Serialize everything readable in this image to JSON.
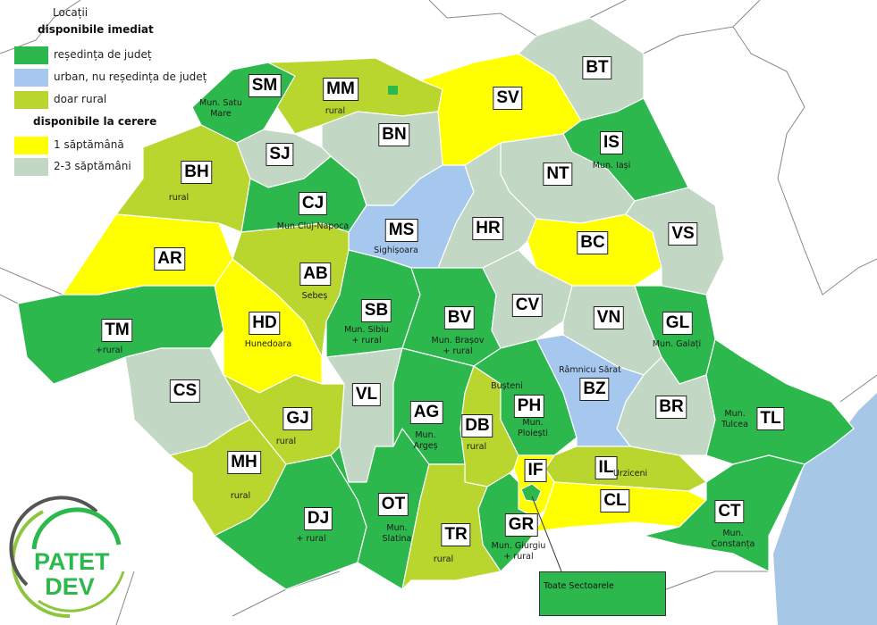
{
  "legend": {
    "title": "Locații",
    "group_immediate": "disponibile imediat",
    "group_on_request": "disponibile la cerere",
    "items": [
      {
        "key": "resedinta",
        "label": "reședința de județ",
        "color": "#2db84d"
      },
      {
        "key": "urban",
        "label": "urban, nu reședința de județ",
        "color": "#a6c8ee"
      },
      {
        "key": "rural",
        "label": "doar rural",
        "color": "#b8d62e"
      },
      {
        "key": "week1",
        "label": "1 săptămână",
        "color": "#ffff00"
      },
      {
        "key": "weeks23",
        "label": "2-3 săptămâni",
        "color": "#c3d8c4"
      }
    ]
  },
  "sea_color": "#a7c7e7",
  "counties": [
    {
      "code": "SM",
      "category": "resedinta",
      "note": "Mun. Satu\nMare"
    },
    {
      "code": "MM",
      "category": "rural",
      "note": "rural"
    },
    {
      "code": "SV",
      "category": "week1",
      "note": ""
    },
    {
      "code": "BT",
      "category": "weeks23",
      "note": ""
    },
    {
      "code": "IS",
      "category": "resedinta",
      "note": "Mun. Iași"
    },
    {
      "code": "BH",
      "category": "rural",
      "note": "rural"
    },
    {
      "code": "SJ",
      "category": "weeks23",
      "note": ""
    },
    {
      "code": "CJ",
      "category": "resedinta",
      "note": "Mun Cluj-Napoca"
    },
    {
      "code": "BN",
      "category": "weeks23",
      "note": ""
    },
    {
      "code": "NT",
      "category": "weeks23",
      "note": ""
    },
    {
      "code": "MS",
      "category": "urban",
      "note": "Sighișoara"
    },
    {
      "code": "HR",
      "category": "weeks23",
      "note": ""
    },
    {
      "code": "BC",
      "category": "week1",
      "note": ""
    },
    {
      "code": "VS",
      "category": "weeks23",
      "note": ""
    },
    {
      "code": "AR",
      "category": "week1",
      "note": ""
    },
    {
      "code": "AB",
      "category": "rural",
      "note": "Sebeș"
    },
    {
      "code": "HD",
      "category": "week1",
      "note": "Hunedoara"
    },
    {
      "code": "SB",
      "category": "resedinta",
      "note": "Mun. Sibiu\n+ rural"
    },
    {
      "code": "BV",
      "category": "resedinta",
      "note": "Mun. Brașov\n+ rural"
    },
    {
      "code": "CV",
      "category": "weeks23",
      "note": ""
    },
    {
      "code": "VN",
      "category": "weeks23",
      "note": ""
    },
    {
      "code": "GL",
      "category": "resedinta",
      "note": "Mun. Galați"
    },
    {
      "code": "TM",
      "category": "resedinta",
      "note": "+rural"
    },
    {
      "code": "CS",
      "category": "weeks23",
      "note": ""
    },
    {
      "code": "VL",
      "category": "weeks23",
      "note": ""
    },
    {
      "code": "GJ",
      "category": "rural",
      "note": "rural"
    },
    {
      "code": "MH",
      "category": "rural",
      "note": "rural"
    },
    {
      "code": "DJ",
      "category": "resedinta",
      "note": "+ rural"
    },
    {
      "code": "OT",
      "category": "resedinta",
      "note": "Mun.\nSlatina"
    },
    {
      "code": "AG",
      "category": "resedinta",
      "note": "Mun.\nArgeș"
    },
    {
      "code": "DB",
      "category": "rural",
      "note": "rural"
    },
    {
      "code": "PH",
      "category": "resedinta",
      "note": "Mun.\nPloiești",
      "note2": "Bușteni"
    },
    {
      "code": "BZ",
      "category": "urban",
      "note": "Râmnicu Sărat"
    },
    {
      "code": "BR",
      "category": "weeks23",
      "note": ""
    },
    {
      "code": "TL",
      "category": "resedinta",
      "note": "Mun.\nTulcea"
    },
    {
      "code": "IL",
      "category": "rural",
      "note": "Urziceni"
    },
    {
      "code": "CL",
      "category": "week1",
      "note": ""
    },
    {
      "code": "IF",
      "category": "week1",
      "note": ""
    },
    {
      "code": "GR",
      "category": "resedinta",
      "note": "Mun. Giurgiu\n+ rural"
    },
    {
      "code": "TR",
      "category": "rural",
      "note": "rural"
    },
    {
      "code": "CT",
      "category": "resedinta",
      "note": "Mun.\nConstanța"
    }
  ],
  "bucharest": {
    "category": "resedinta",
    "callout": "Toate Sectoarele"
  },
  "logo": {
    "line1": "PATET",
    "line2": "DEV",
    "colors": [
      "#2db84d",
      "#8cc63f",
      "#555555"
    ]
  }
}
